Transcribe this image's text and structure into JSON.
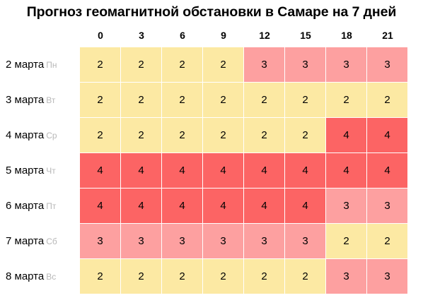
{
  "title": "Прогноз геомагнитной обстановки в Самаре на 7 дней",
  "colors": {
    "level_2": "#fce9a3",
    "level_3": "#fda0a0",
    "level_4": "#fc6464"
  },
  "chart_data": {
    "type": "heatmap",
    "title": "Прогноз геомагнитной обстановки в Самаре на 7 дней",
    "columns": [
      "0",
      "3",
      "6",
      "9",
      "12",
      "15",
      "18",
      "21"
    ],
    "rows": [
      {
        "label": "2 марта",
        "weekday": "Пн",
        "values": [
          2,
          2,
          2,
          2,
          3,
          3,
          3,
          3
        ]
      },
      {
        "label": "3 марта",
        "weekday": "Вт",
        "values": [
          2,
          2,
          2,
          2,
          2,
          2,
          2,
          2
        ]
      },
      {
        "label": "4 марта",
        "weekday": "Ср",
        "values": [
          2,
          2,
          2,
          2,
          2,
          2,
          4,
          4
        ]
      },
      {
        "label": "5 марта",
        "weekday": "Чт",
        "values": [
          4,
          4,
          4,
          4,
          4,
          4,
          4,
          4
        ]
      },
      {
        "label": "6 марта",
        "weekday": "Пт",
        "values": [
          4,
          4,
          4,
          4,
          4,
          4,
          3,
          3
        ]
      },
      {
        "label": "7 марта",
        "weekday": "Сб",
        "values": [
          3,
          3,
          3,
          3,
          3,
          3,
          2,
          2
        ]
      },
      {
        "label": "8 марта",
        "weekday": "Вс",
        "values": [
          2,
          2,
          2,
          2,
          2,
          2,
          3,
          3
        ]
      }
    ]
  }
}
